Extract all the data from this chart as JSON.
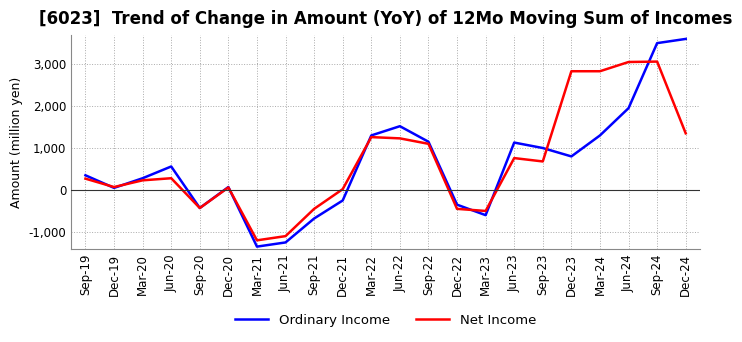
{
  "title": "[6023]  Trend of Change in Amount (YoY) of 12Mo Moving Sum of Incomes",
  "ylabel": "Amount (million yen)",
  "ylim": [
    -1400,
    3700
  ],
  "yticks": [
    -1000,
    0,
    1000,
    2000,
    3000
  ],
  "x_labels": [
    "Sep-19",
    "Dec-19",
    "Mar-20",
    "Jun-20",
    "Sep-20",
    "Dec-20",
    "Mar-21",
    "Jun-21",
    "Sep-21",
    "Dec-21",
    "Mar-22",
    "Jun-22",
    "Sep-22",
    "Dec-22",
    "Mar-23",
    "Jun-23",
    "Sep-23",
    "Dec-23",
    "Mar-24",
    "Jun-24",
    "Sep-24",
    "Dec-24"
  ],
  "ordinary_income": [
    350,
    50,
    280,
    560,
    -430,
    70,
    -1350,
    -1250,
    -680,
    -250,
    1300,
    1520,
    1150,
    -350,
    -600,
    1130,
    1000,
    800,
    1300,
    1950,
    3500,
    3600
  ],
  "net_income": [
    270,
    70,
    230,
    280,
    -430,
    60,
    -1200,
    -1100,
    -450,
    20,
    1260,
    1230,
    1100,
    -450,
    -500,
    760,
    680,
    2830,
    2830,
    3050,
    3060,
    1350
  ],
  "ordinary_color": "#0000FF",
  "net_color": "#FF0000",
  "line_width": 1.8,
  "grid_color": "#aaaaaa",
  "background_color": "#ffffff",
  "title_fontsize": 12,
  "label_fontsize": 9,
  "tick_fontsize": 8.5
}
